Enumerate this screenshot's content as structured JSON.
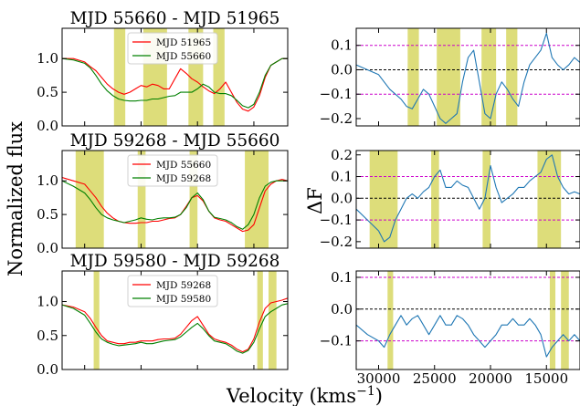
{
  "figure": {
    "ylabel_left": "Normalized flux",
    "ylabel_right": "ΔF",
    "xlabel_main": "Velocity (kms",
    "xlabel_sup": "−1",
    "xlabel_end": ")"
  },
  "colors": {
    "red": "#ff0000",
    "green": "#008000",
    "blue": "#1f77b4",
    "band": "#d9d96b",
    "magenta": "#cc00cc",
    "black": "#000000"
  },
  "chart_data": [
    {
      "type": "line",
      "title": "MJD 55660 - MJD 51965",
      "xlim": [
        32000,
        12000
      ],
      "ylim": [
        0.0,
        1.45
      ],
      "xticks": [
        30000,
        25000,
        20000,
        15000
      ],
      "yticks": [
        0.0,
        0.5,
        1.0
      ],
      "ytick_labels": [
        "0.0",
        "0.5",
        "1.0"
      ],
      "legend_placement": "upper-center",
      "bands": [
        [
          27400,
          26400
        ],
        [
          24800,
          22700
        ],
        [
          20800,
          19500
        ],
        [
          18600,
          17600
        ]
      ],
      "series": [
        {
          "name": "MJD 51965",
          "color": "red",
          "x": [
            32000,
            31000,
            30000,
            29500,
            29000,
            28500,
            28000,
            27500,
            27000,
            26500,
            26000,
            25500,
            25000,
            24500,
            24000,
            23500,
            23000,
            22500,
            22000,
            21500,
            21000,
            20500,
            20000,
            19500,
            19000,
            18500,
            18000,
            17500,
            17000,
            16500,
            16000,
            15500,
            15000,
            14500,
            14000,
            13500,
            13000,
            12500,
            12000
          ],
          "y": [
            1.0,
            1.0,
            0.95,
            0.88,
            0.82,
            0.72,
            0.62,
            0.55,
            0.5,
            0.47,
            0.5,
            0.55,
            0.6,
            0.58,
            0.62,
            0.6,
            0.55,
            0.55,
            0.7,
            0.85,
            0.78,
            0.7,
            0.65,
            0.58,
            0.52,
            0.48,
            0.55,
            0.65,
            0.5,
            0.35,
            0.25,
            0.22,
            0.28,
            0.45,
            0.72,
            0.9,
            0.95,
            1.0,
            1.0
          ]
        },
        {
          "name": "MJD 55660",
          "color": "green",
          "x": [
            32000,
            31000,
            30000,
            29500,
            29000,
            28500,
            28000,
            27500,
            27000,
            26500,
            26000,
            25500,
            25000,
            24500,
            24000,
            23500,
            23000,
            22500,
            22000,
            21500,
            21000,
            20500,
            20000,
            19500,
            19000,
            18500,
            18000,
            17500,
            17000,
            16500,
            16000,
            15500,
            15000,
            14500,
            14000,
            13500,
            13000,
            12500,
            12000
          ],
          "y": [
            1.0,
            0.98,
            0.93,
            0.86,
            0.75,
            0.62,
            0.52,
            0.45,
            0.4,
            0.38,
            0.37,
            0.37,
            0.38,
            0.38,
            0.4,
            0.4,
            0.42,
            0.44,
            0.45,
            0.5,
            0.5,
            0.5,
            0.55,
            0.62,
            0.58,
            0.5,
            0.48,
            0.48,
            0.45,
            0.38,
            0.3,
            0.27,
            0.32,
            0.5,
            0.75,
            0.9,
            0.95,
            1.0,
            1.0
          ]
        }
      ]
    },
    {
      "type": "line",
      "title": "MJD 59268 - MJD 55660",
      "xlim": [
        32000,
        12000
      ],
      "ylim": [
        0.0,
        1.45
      ],
      "xticks": [
        30000,
        25000,
        20000,
        15000
      ],
      "yticks": [
        0.0,
        0.5,
        1.0
      ],
      "ytick_labels": [
        "0.0",
        "0.5",
        "1.0"
      ],
      "legend_placement": "upper-center",
      "bands": [
        [
          30800,
          28300
        ],
        [
          25300,
          24600
        ],
        [
          20700,
          20000
        ],
        [
          15800,
          13700
        ]
      ],
      "series": [
        {
          "name": "MJD 55660",
          "color": "red",
          "x": [
            32000,
            31000,
            30000,
            29500,
            29000,
            28500,
            28000,
            27500,
            27000,
            26500,
            26000,
            25500,
            25000,
            24500,
            24000,
            23500,
            23000,
            22500,
            22000,
            21500,
            21000,
            20500,
            20000,
            19500,
            19000,
            18500,
            18000,
            17500,
            17000,
            16500,
            16000,
            15500,
            15000,
            14500,
            14000,
            13500,
            13000,
            12500,
            12000
          ],
          "y": [
            1.05,
            1.0,
            0.95,
            0.85,
            0.75,
            0.62,
            0.52,
            0.45,
            0.4,
            0.38,
            0.37,
            0.37,
            0.38,
            0.38,
            0.4,
            0.4,
            0.42,
            0.44,
            0.45,
            0.5,
            0.62,
            0.75,
            0.78,
            0.7,
            0.55,
            0.45,
            0.42,
            0.4,
            0.35,
            0.3,
            0.25,
            0.27,
            0.35,
            0.6,
            0.85,
            0.95,
            1.0,
            1.02,
            1.0
          ]
        },
        {
          "name": "MJD 59268",
          "color": "green",
          "x": [
            32000,
            31000,
            30000,
            29500,
            29000,
            28500,
            28000,
            27500,
            27000,
            26500,
            26000,
            25500,
            25000,
            24500,
            24000,
            23500,
            23000,
            22500,
            22000,
            21500,
            21000,
            20500,
            20000,
            19500,
            19000,
            18500,
            18000,
            17500,
            17000,
            16500,
            16000,
            15500,
            15000,
            14500,
            14000,
            13500,
            13000,
            12500,
            12000
          ],
          "y": [
            1.0,
            0.92,
            0.82,
            0.72,
            0.6,
            0.5,
            0.45,
            0.42,
            0.4,
            0.38,
            0.4,
            0.42,
            0.45,
            0.43,
            0.42,
            0.44,
            0.45,
            0.45,
            0.46,
            0.5,
            0.6,
            0.75,
            0.82,
            0.72,
            0.55,
            0.46,
            0.44,
            0.42,
            0.38,
            0.32,
            0.28,
            0.35,
            0.5,
            0.75,
            0.92,
            0.98,
            1.0,
            1.0,
            1.0
          ]
        }
      ]
    },
    {
      "type": "line",
      "title": "MJD 59580 - MJD 59268",
      "xlim": [
        32000,
        12000
      ],
      "ylim": [
        0.0,
        1.45
      ],
      "xticks": [
        30000,
        25000,
        20000,
        15000
      ],
      "yticks": [
        0.0,
        0.5,
        1.0
      ],
      "ytick_labels": [
        "0.0",
        "0.5",
        "1.0"
      ],
      "legend_placement": "upper-center",
      "bands": [
        [
          29200,
          28700
        ],
        [
          14700,
          14200
        ],
        [
          13700,
          13000
        ]
      ],
      "series": [
        {
          "name": "MJD 59268",
          "color": "red",
          "x": [
            32000,
            31000,
            30000,
            29500,
            29000,
            28500,
            28000,
            27500,
            27000,
            26500,
            26000,
            25500,
            25000,
            24500,
            24000,
            23500,
            23000,
            22500,
            22000,
            21500,
            21000,
            20500,
            20000,
            19500,
            19000,
            18500,
            18000,
            17500,
            17000,
            16500,
            16000,
            15500,
            15000,
            14500,
            14000,
            13500,
            13000,
            12500,
            12000
          ],
          "y": [
            0.95,
            0.92,
            0.85,
            0.75,
            0.62,
            0.5,
            0.42,
            0.4,
            0.38,
            0.38,
            0.4,
            0.4,
            0.42,
            0.42,
            0.42,
            0.44,
            0.45,
            0.45,
            0.46,
            0.52,
            0.62,
            0.72,
            0.78,
            0.65,
            0.52,
            0.45,
            0.42,
            0.4,
            0.36,
            0.3,
            0.26,
            0.3,
            0.45,
            0.7,
            0.9,
            0.98,
            1.0,
            1.02,
            1.05
          ]
        },
        {
          "name": "MJD 59580",
          "color": "green",
          "x": [
            32000,
            31000,
            30000,
            29500,
            29000,
            28500,
            28000,
            27500,
            27000,
            26500,
            26000,
            25500,
            25000,
            24500,
            24000,
            23500,
            23000,
            22500,
            22000,
            21500,
            21000,
            20500,
            20000,
            19500,
            19000,
            18500,
            18000,
            17500,
            17000,
            16500,
            16000,
            15500,
            15000,
            14500,
            14000,
            13500,
            13000,
            12500,
            12000
          ],
          "y": [
            0.95,
            0.9,
            0.8,
            0.68,
            0.55,
            0.45,
            0.4,
            0.37,
            0.35,
            0.36,
            0.37,
            0.38,
            0.4,
            0.38,
            0.38,
            0.4,
            0.42,
            0.43,
            0.44,
            0.48,
            0.55,
            0.62,
            0.68,
            0.6,
            0.5,
            0.42,
            0.4,
            0.38,
            0.33,
            0.27,
            0.24,
            0.28,
            0.4,
            0.6,
            0.78,
            0.85,
            0.9,
            0.95,
            0.97
          ]
        }
      ]
    },
    {
      "type": "line",
      "xlim": [
        32000,
        12000
      ],
      "ylim": [
        -0.23,
        0.17
      ],
      "xticks": [
        30000,
        25000,
        20000,
        15000
      ],
      "yticks": [
        -0.2,
        -0.1,
        0.0,
        0.1
      ],
      "ytick_labels": [
        "−0.2",
        "−0.1",
        "0.0",
        "0.1"
      ],
      "hlines": [
        {
          "y": 0.1,
          "color": "magenta"
        },
        {
          "y": 0.0,
          "color": "black"
        },
        {
          "y": -0.1,
          "color": "magenta"
        }
      ],
      "bands": [
        [
          27400,
          26400
        ],
        [
          24800,
          22700
        ],
        [
          20800,
          19500
        ],
        [
          18600,
          17600
        ]
      ],
      "series": [
        {
          "color": "blue",
          "x": [
            32000,
            31000,
            30000,
            29500,
            29000,
            28500,
            28000,
            27500,
            27000,
            26500,
            26000,
            25500,
            25000,
            24500,
            24000,
            23500,
            23000,
            22500,
            22000,
            21500,
            21000,
            20500,
            20000,
            19500,
            19000,
            18500,
            18000,
            17500,
            17000,
            16500,
            16000,
            15500,
            15000,
            14500,
            14000,
            13500,
            13000,
            12500,
            12000
          ],
          "y": [
            0.02,
            0.0,
            -0.02,
            -0.05,
            -0.08,
            -0.1,
            -0.12,
            -0.15,
            -0.16,
            -0.12,
            -0.08,
            -0.1,
            -0.15,
            -0.2,
            -0.22,
            -0.2,
            -0.18,
            -0.05,
            0.05,
            0.08,
            -0.05,
            -0.18,
            -0.2,
            -0.1,
            -0.05,
            -0.08,
            -0.12,
            -0.15,
            -0.05,
            0.02,
            0.05,
            0.08,
            0.15,
            0.05,
            0.02,
            0.0,
            0.02,
            0.05,
            0.03
          ]
        }
      ]
    },
    {
      "type": "line",
      "xlim": [
        32000,
        12000
      ],
      "ylim": [
        -0.23,
        0.22
      ],
      "xticks": [
        30000,
        25000,
        20000,
        15000
      ],
      "yticks": [
        -0.2,
        -0.1,
        0.0,
        0.1,
        0.2
      ],
      "ytick_labels": [
        "−0.2",
        "−0.1",
        "0.0",
        "0.1",
        "0.2"
      ],
      "hlines": [
        {
          "y": 0.1,
          "color": "magenta"
        },
        {
          "y": 0.0,
          "color": "black"
        },
        {
          "y": -0.1,
          "color": "magenta"
        }
      ],
      "bands": [
        [
          30800,
          28300
        ],
        [
          25300,
          24600
        ],
        [
          20700,
          20000
        ],
        [
          15800,
          13700
        ]
      ],
      "series": [
        {
          "color": "blue",
          "x": [
            32000,
            31000,
            30000,
            29500,
            29000,
            28500,
            28000,
            27500,
            27000,
            26500,
            26000,
            25500,
            25000,
            24500,
            24000,
            23500,
            23000,
            22500,
            22000,
            21500,
            21000,
            20500,
            20000,
            19500,
            19000,
            18500,
            18000,
            17500,
            17000,
            16500,
            16000,
            15500,
            15000,
            14500,
            14000,
            13500,
            13000,
            12500,
            12000
          ],
          "y": [
            -0.05,
            -0.1,
            -0.15,
            -0.2,
            -0.18,
            -0.1,
            -0.05,
            0.0,
            0.02,
            0.0,
            0.03,
            0.05,
            0.1,
            0.13,
            0.05,
            0.05,
            0.08,
            0.06,
            0.05,
            0.0,
            -0.05,
            0.0,
            0.15,
            0.05,
            -0.02,
            0.0,
            0.02,
            0.05,
            0.05,
            0.08,
            0.1,
            0.12,
            0.18,
            0.2,
            0.1,
            0.05,
            0.02,
            0.03,
            0.02
          ]
        }
      ]
    },
    {
      "type": "line",
      "xlim": [
        32000,
        12000
      ],
      "ylim": [
        -0.19,
        0.12
      ],
      "xticks": [
        30000,
        25000,
        20000,
        15000
      ],
      "xtick_labels": [
        "30000",
        "25000",
        "20000",
        "15000"
      ],
      "yticks": [
        -0.1,
        0.0,
        0.1
      ],
      "ytick_labels": [
        "−0.1",
        "0.0",
        "0.1"
      ],
      "hlines": [
        {
          "y": 0.1,
          "color": "magenta"
        },
        {
          "y": 0.0,
          "color": "black"
        },
        {
          "y": -0.1,
          "color": "magenta"
        }
      ],
      "bands": [
        [
          29200,
          28700
        ],
        [
          14700,
          14200
        ],
        [
          13700,
          13000
        ]
      ],
      "series": [
        {
          "color": "blue",
          "x": [
            32000,
            31000,
            30000,
            29500,
            29000,
            28500,
            28000,
            27500,
            27000,
            26500,
            26000,
            25500,
            25000,
            24500,
            24000,
            23500,
            23000,
            22500,
            22000,
            21500,
            21000,
            20500,
            20000,
            19500,
            19000,
            18500,
            18000,
            17500,
            17000,
            16500,
            16000,
            15500,
            15000,
            14500,
            14000,
            13500,
            13000,
            12500,
            12000
          ],
          "y": [
            -0.05,
            -0.08,
            -0.1,
            -0.12,
            -0.08,
            -0.05,
            -0.02,
            -0.05,
            -0.03,
            -0.02,
            -0.05,
            -0.08,
            -0.05,
            -0.02,
            -0.05,
            -0.05,
            -0.02,
            -0.03,
            -0.05,
            -0.08,
            -0.1,
            -0.12,
            -0.1,
            -0.08,
            -0.05,
            -0.05,
            -0.03,
            -0.05,
            -0.05,
            -0.03,
            -0.05,
            -0.08,
            -0.15,
            -0.12,
            -0.1,
            -0.08,
            -0.1,
            -0.08,
            -0.1
          ]
        }
      ]
    }
  ]
}
